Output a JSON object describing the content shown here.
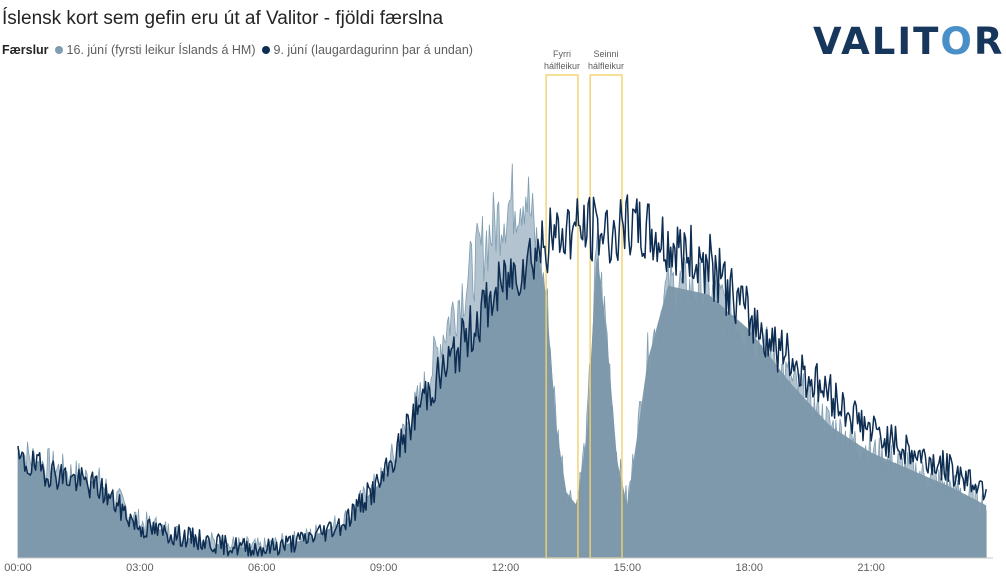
{
  "title": "Íslensk kort sem gefin eru út af Valitor - fjöldi færslna",
  "logo": {
    "pre": "VALIT",
    "accent": "O",
    "post": "R",
    "color": "#16365c",
    "accent_color": "#4a90c8"
  },
  "legend": {
    "title": "Færslur",
    "items": [
      {
        "label": "16. júní (fyrsti leikur Íslands á HM)",
        "color": "#7f9db0"
      },
      {
        "label": "9. júní (laugardagurinn þar á undan)",
        "color": "#0e2d52"
      }
    ]
  },
  "annotations": [
    {
      "label_line1": "Fyrri",
      "label_line2": "hálfleikur",
      "start": "13:00",
      "end": "13:47",
      "color": "#f2d16b"
    },
    {
      "label_line1": "Seinni",
      "label_line2": "hálfleikur",
      "start": "14:05",
      "end": "14:52",
      "color": "#f2d16b"
    }
  ],
  "chart_data": {
    "type": "area",
    "title": "Íslensk kort sem gefin eru út af Valitor - fjöldi færslna",
    "xlabel": "",
    "ylabel": "",
    "x_ticks": [
      "00:00",
      "03:00",
      "06:00",
      "09:00",
      "12:00",
      "15:00",
      "18:00",
      "21:00"
    ],
    "x": [
      "00:00",
      "01:00",
      "02:00",
      "03:00",
      "04:00",
      "05:00",
      "06:00",
      "07:00",
      "08:00",
      "09:00",
      "10:00",
      "10:30",
      "11:00",
      "11:30",
      "12:00",
      "12:30",
      "13:00",
      "13:15",
      "13:30",
      "13:45",
      "14:00",
      "14:15",
      "14:30",
      "14:45",
      "15:00",
      "15:30",
      "16:00",
      "17:00",
      "18:00",
      "19:00",
      "20:00",
      "21:00",
      "22:00",
      "23:00",
      "23:50"
    ],
    "ylim": [
      0,
      110
    ],
    "grid": false,
    "legend_position": "top-left",
    "series": [
      {
        "name": "16. júní (fyrsti leikur Íslands á HM)",
        "type": "area",
        "color": "#7f9db0",
        "values": [
          24,
          20,
          17,
          8,
          5,
          3,
          2,
          4,
          8,
          18,
          38,
          52,
          62,
          72,
          80,
          84,
          60,
          30,
          15,
          12,
          28,
          70,
          50,
          22,
          12,
          45,
          62,
          60,
          52,
          40,
          30,
          24,
          20,
          16,
          12
        ]
      },
      {
        "name": "9. júní (laugardagurinn þar á undan)",
        "type": "line",
        "color": "#0e2d52",
        "values": [
          22,
          19,
          16,
          7,
          5,
          3,
          2,
          4,
          8,
          18,
          37,
          43,
          50,
          57,
          63,
          68,
          72,
          73,
          75,
          75,
          75,
          75,
          74,
          74,
          75,
          74,
          71,
          67,
          55,
          45,
          37,
          29,
          24,
          20,
          16
        ]
      }
    ]
  }
}
